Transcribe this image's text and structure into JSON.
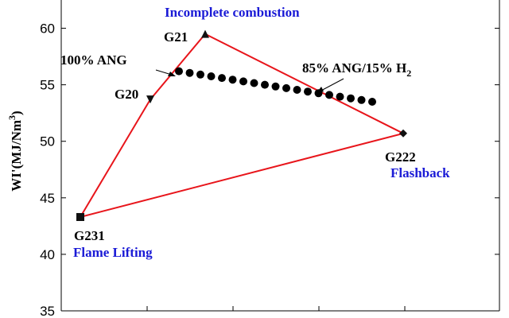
{
  "chart_data": {
    "type": "scatter",
    "ylabel": "WI'(MJ/Nm³)",
    "ylim": [
      35,
      62.5
    ],
    "yticks": [
      35,
      40,
      45,
      50,
      55,
      60
    ],
    "y_tick_labels": [
      "35",
      "40",
      "45",
      "50",
      "55",
      "60"
    ],
    "grid": false,
    "gases": [
      {
        "name": "G20",
        "marker": "triangle-down",
        "y": 53.7
      },
      {
        "name": "G21",
        "marker": "triangle-up",
        "y": 59.5
      },
      {
        "name": "G222",
        "marker": "diamond",
        "y": 50.7
      },
      {
        "name": "G231",
        "marker": "square",
        "y": 43.3
      }
    ],
    "boundary_polygon": [
      "G231",
      "G20",
      "G21",
      "G222",
      "G231"
    ],
    "boundary_color": "#e8151b",
    "blend_series": {
      "marker": "circle",
      "color": "#000000",
      "count": 19,
      "y_start": 56.2,
      "y_end": 53.5,
      "start_label": "100% ANG",
      "end_label": "85% ANG/15% H",
      "end_label_subscript": "2"
    },
    "regions": {
      "top": "Incomplete combustion",
      "right": "Flashback",
      "left": "Flame Lifting"
    },
    "region_color": "#1a1ad6"
  }
}
